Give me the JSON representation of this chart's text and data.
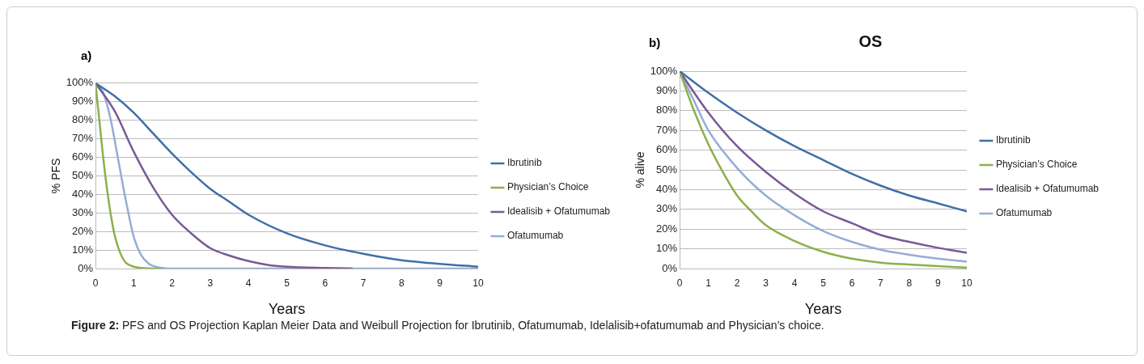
{
  "chart_data": [
    {
      "type": "line",
      "xlabel": "Years",
      "ylabel": "% PFS",
      "annotations": [
        "a)",
        "Figure 2: PFS and OS Projection Kaplan Meier Data and Weibull Projection for Ibrutinib, Ofatumumab, Idelalisib+ofatumumab and Physician’s choice."
      ],
      "xlim": [
        0,
        10
      ],
      "xticks": [
        0,
        1,
        2,
        3,
        4,
        5,
        6,
        7,
        8,
        9,
        10
      ],
      "ylim": [
        0,
        100
      ],
      "yticks": [
        {
          "value": 0,
          "label": "0%"
        },
        {
          "value": 10,
          "label": "10%"
        },
        {
          "value": 20,
          "label": "20%"
        },
        {
          "value": 30,
          "label": "30%"
        },
        {
          "value": 40,
          "label": "40%"
        },
        {
          "value": 50,
          "label": "50%"
        },
        {
          "value": 60,
          "label": "60%"
        },
        {
          "value": 70,
          "label": "70%"
        },
        {
          "value": 80,
          "label": "80%"
        },
        {
          "value": 90,
          "label": "90%"
        },
        {
          "value": 100,
          "label": "100%"
        }
      ],
      "grid": "y",
      "legend": "right",
      "marker": "none",
      "line_style": "solid",
      "series": [
        {
          "name": "Ibrutinib",
          "color": "#3f6fa8",
          "x": [
            0,
            0.5,
            1,
            1.5,
            2,
            2.5,
            3,
            3.5,
            4,
            5,
            6,
            7,
            8,
            9,
            10
          ],
          "values": [
            100,
            93,
            84,
            73,
            62,
            52,
            43,
            36,
            29,
            19,
            12.5,
            8,
            4.5,
            2.5,
            1
          ]
        },
        {
          "name": "Physician’s Choice",
          "color": "#8cb04a",
          "x": [
            0,
            0.1,
            0.2,
            0.3,
            0.4,
            0.5,
            0.6,
            0.7,
            0.8,
            1,
            1.2,
            1.5,
            1.7
          ],
          "values": [
            100,
            80,
            60,
            43,
            29,
            18,
            11,
            6,
            3,
            1,
            0.3,
            0,
            0
          ]
        },
        {
          "name": "Idealisib + Ofatumumab",
          "color": "#7a5a96",
          "x": [
            0,
            0.5,
            1,
            1.5,
            2,
            2.5,
            3,
            3.5,
            4,
            4.5,
            5,
            6,
            6.7
          ],
          "values": [
            100,
            85,
            63,
            44,
            29,
            19,
            11,
            7,
            4,
            2,
            1,
            0.3,
            0
          ]
        },
        {
          "name": "Ofatumumab",
          "color": "#94add6",
          "x": [
            0,
            0.2,
            0.4,
            0.6,
            0.8,
            1,
            1.2,
            1.4,
            1.6,
            2,
            10
          ],
          "values": [
            100,
            95,
            80,
            58,
            36,
            17,
            7,
            2.5,
            0.8,
            0,
            0
          ]
        }
      ]
    },
    {
      "type": "line",
      "title": "OS",
      "xlabel": "Years",
      "ylabel": "% alive",
      "annotations": [
        "b)"
      ],
      "xlim": [
        0,
        10
      ],
      "xticks": [
        0,
        1,
        2,
        3,
        4,
        5,
        6,
        7,
        8,
        9,
        10
      ],
      "ylim": [
        0,
        100
      ],
      "yticks": [
        {
          "value": 0,
          "label": "0%"
        },
        {
          "value": 10,
          "label": "10%"
        },
        {
          "value": 20,
          "label": "20%"
        },
        {
          "value": 30,
          "label": "30%"
        },
        {
          "value": 40,
          "label": "40%"
        },
        {
          "value": 50,
          "label": "50%"
        },
        {
          "value": 60,
          "label": "60%"
        },
        {
          "value": 70,
          "label": "70%"
        },
        {
          "value": 80,
          "label": "80%"
        },
        {
          "value": 90,
          "label": "90%"
        },
        {
          "value": 100,
          "label": "100%"
        }
      ],
      "grid": "y",
      "legend": "right",
      "marker": "none",
      "line_style": "solid",
      "series": [
        {
          "name": "Ibrutinib",
          "color": "#3f6fa8",
          "x": [
            0,
            1,
            2,
            3,
            4,
            5,
            6,
            7,
            8,
            9,
            10
          ],
          "values": [
            100,
            89,
            79,
            70,
            62,
            55,
            48,
            42,
            37,
            33,
            29
          ]
        },
        {
          "name": "Physician’s Choice",
          "color": "#8cb04a",
          "x": [
            0,
            0.5,
            1,
            1.5,
            2,
            2.5,
            3,
            4,
            5,
            6,
            7,
            8,
            9,
            10
          ],
          "values": [
            100,
            80,
            63,
            49,
            37,
            29,
            22,
            14,
            8.5,
            5,
            3,
            2,
            1.2,
            0.5
          ]
        },
        {
          "name": "Idealisib + Ofatumumab",
          "color": "#7a5a96",
          "x": [
            0,
            1,
            2,
            3,
            4,
            5,
            6,
            7,
            8,
            9,
            10
          ],
          "values": [
            100,
            79,
            62,
            49,
            38,
            29,
            23,
            17,
            13.5,
            10.5,
            8
          ]
        },
        {
          "name": "Ofatumumab",
          "color": "#94add6",
          "x": [
            0,
            0.5,
            1,
            2,
            3,
            4,
            5,
            6,
            7,
            8,
            9,
            10
          ],
          "values": [
            100,
            85,
            70,
            51,
            37,
            27,
            19,
            13.5,
            9.5,
            7,
            5,
            3.5
          ]
        }
      ]
    }
  ]
}
